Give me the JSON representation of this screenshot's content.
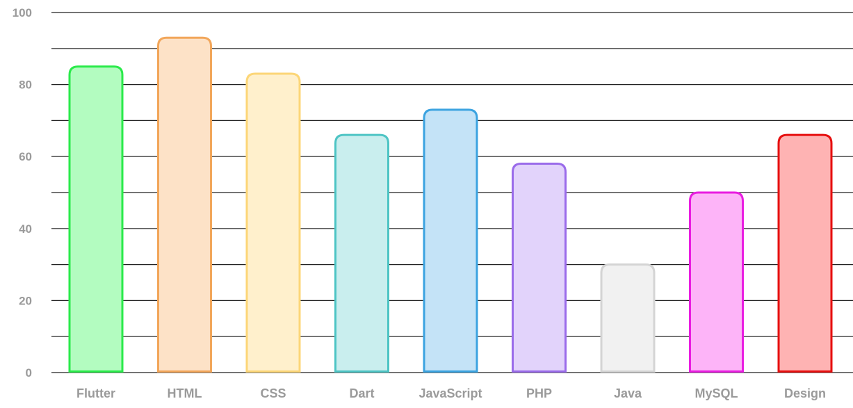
{
  "chart_data": {
    "type": "bar",
    "categories": [
      "Flutter",
      "HTML",
      "CSS",
      "Dart",
      "JavaScript",
      "PHP",
      "Java",
      "MySQL",
      "Design"
    ],
    "values": [
      85,
      93,
      83,
      66,
      73,
      58,
      30,
      50,
      66
    ],
    "ylim": [
      0,
      100
    ],
    "y_ticks": [
      0,
      20,
      40,
      60,
      80,
      100
    ],
    "y_tick_labels": [
      "0",
      "20",
      "40",
      "60",
      "80",
      "100"
    ],
    "gridlines": [
      0,
      10,
      20,
      30,
      40,
      50,
      60,
      70,
      80,
      90,
      100
    ],
    "grid": true,
    "title": "",
    "xlabel": "",
    "ylabel": "",
    "bar_fill_colors": [
      "#b3fcc0",
      "#fde2c7",
      "#fff0cc",
      "#c9eeee",
      "#c4e3f7",
      "#e2d3fb",
      "#f1f1f1",
      "#fdb4f8",
      "#feb3b3"
    ],
    "bar_stroke_colors": [
      "#2aea4a",
      "#f2a65a",
      "#fcd677",
      "#4dc4c4",
      "#3ba3e0",
      "#9a6bea",
      "#d4d4d4",
      "#e91de1",
      "#e60f0f"
    ],
    "tick_label_color": "#9a9a9a",
    "gridline_color": "#222222"
  }
}
